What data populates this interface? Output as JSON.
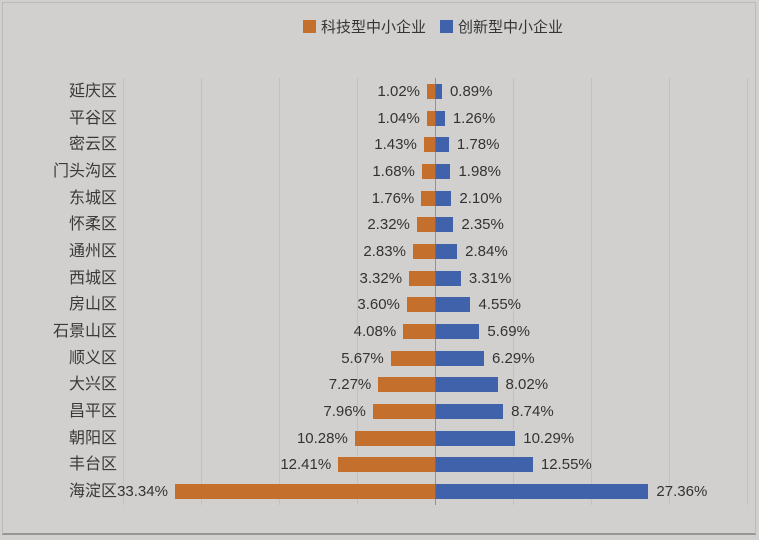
{
  "legend": [
    {
      "label": "科技型中小企业",
      "color": "#c4702c"
    },
    {
      "label": "创新型中小企业",
      "color": "#3f62ab"
    }
  ],
  "chart_data": {
    "type": "bar",
    "orientation": "horizontal-diverging",
    "title": "",
    "categories": [
      "延庆区",
      "平谷区",
      "密云区",
      "门头沟区",
      "东城区",
      "怀柔区",
      "通州区",
      "西城区",
      "房山区",
      "石景山区",
      "顺义区",
      "大兴区",
      "昌平区",
      "朝阳区",
      "丰台区",
      "海淀区"
    ],
    "series": [
      {
        "name": "科技型中小企业",
        "side": "left",
        "color": "#c4702c",
        "values": [
          1.02,
          1.04,
          1.43,
          1.68,
          1.76,
          2.32,
          2.83,
          3.32,
          3.6,
          4.08,
          5.67,
          7.27,
          7.96,
          10.28,
          12.41,
          33.34
        ]
      },
      {
        "name": "创新型中小企业",
        "side": "right",
        "color": "#3f62ab",
        "values": [
          0.89,
          1.26,
          1.78,
          1.98,
          2.1,
          2.35,
          2.84,
          3.31,
          4.55,
          5.69,
          6.29,
          8.02,
          8.74,
          10.29,
          12.55,
          27.36
        ]
      }
    ],
    "value_suffix": "%",
    "xlim": [
      -40,
      40
    ],
    "gridline_step": 10,
    "grid": true,
    "legend_position": "top-center",
    "background_color": "#d1d0ce",
    "text_color": "#3a3a3a"
  }
}
